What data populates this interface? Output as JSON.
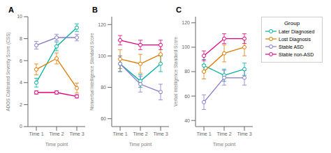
{
  "chart_data": [
    {
      "type": "line",
      "title": "A",
      "x_label": "Time point",
      "y_label": "ADOS Calibrated Severity Score (CSS)",
      "categories": [
        "Time 1",
        "Time 2",
        "Time 3"
      ],
      "ylim": [
        0,
        10
      ],
      "yticks": [
        0,
        2,
        4,
        6,
        8,
        10
      ],
      "grid": false,
      "series": [
        {
          "name": "Later Diagnosed",
          "color": "#00b0a0",
          "marker": "circle",
          "line_style": "solid",
          "values": [
            4.0,
            7.3,
            9.0
          ],
          "yerr": [
            0.4,
            0.4,
            0.35
          ]
        },
        {
          "name": "Lost Diagnosis",
          "color": "#e07b00",
          "marker": "circle",
          "line_style": "solid",
          "values": [
            5.2,
            6.2,
            3.5
          ],
          "yerr": [
            0.5,
            0.5,
            0.45
          ]
        },
        {
          "name": "Stable ASD",
          "color": "#8878cc",
          "marker": "circle",
          "line_style": "solid",
          "values": [
            7.4,
            8.1,
            8.1
          ],
          "yerr": [
            0.35,
            0.3,
            0.3
          ]
        },
        {
          "name": "Stable non-ASD",
          "color": "#e0007f",
          "marker": "circle",
          "line_style": "solid",
          "values": [
            3.1,
            3.1,
            2.75
          ],
          "yerr": [
            0.15,
            0.15,
            0.15
          ]
        }
      ]
    },
    {
      "type": "line",
      "title": "B",
      "x_label": "Time point",
      "y_label": "Nonverbal Intelligence Standard Score",
      "categories": [
        "Time 1",
        "Time 2",
        "Time 3"
      ],
      "ylim": [
        55,
        125
      ],
      "yticks": [
        60,
        80,
        100,
        120
      ],
      "grid": false,
      "series": [
        {
          "name": "Later Diagnosed",
          "color": "#00b0a0",
          "marker": "circle",
          "line_style": "solid",
          "values": [
            95,
            84,
            95
          ],
          "yerr": [
            5,
            4,
            5
          ]
        },
        {
          "name": "Lost Diagnosis",
          "color": "#e07b00",
          "marker": "circle",
          "line_style": "solid",
          "values": [
            98,
            95,
            101
          ],
          "yerr": [
            6,
            6,
            6
          ]
        },
        {
          "name": "Stable ASD",
          "color": "#8878cc",
          "marker": "circle",
          "line_style": "solid",
          "values": [
            95,
            82,
            77
          ],
          "yerr": [
            5,
            5,
            5
          ]
        },
        {
          "name": "Stable non-ASD",
          "color": "#e0007f",
          "marker": "circle",
          "line_style": "solid",
          "values": [
            110,
            107,
            107
          ],
          "yerr": [
            3,
            3,
            3
          ]
        }
      ]
    },
    {
      "type": "line",
      "title": "C",
      "x_label": "Time point",
      "y_label": "Verbal Intelligence Standard Score",
      "categories": [
        "Time 1",
        "Time 2",
        "Time 3"
      ],
      "ylim": [
        35,
        125
      ],
      "yticks": [
        40,
        60,
        80,
        100,
        120
      ],
      "grid": false,
      "legend": "right",
      "legend_title": "Group",
      "series": [
        {
          "name": "Later Diagnosed",
          "color": "#00b0a0",
          "marker": "circle",
          "line_style": "solid",
          "values": [
            85,
            77,
            82
          ],
          "yerr": [
            5,
            5,
            5
          ]
        },
        {
          "name": "Lost Diagnosis",
          "color": "#e07b00",
          "marker": "circle",
          "line_style": "solid",
          "values": [
            80,
            95,
            100
          ],
          "yerr": [
            6,
            7,
            7
          ]
        },
        {
          "name": "Stable ASD",
          "color": "#8878cc",
          "marker": "circle",
          "line_style": "solid",
          "values": [
            55,
            75,
            75
          ],
          "yerr": [
            6,
            6,
            6
          ]
        },
        {
          "name": "Stable non-ASD",
          "color": "#e0007f",
          "marker": "circle",
          "line_style": "solid",
          "values": [
            93,
            107,
            107
          ],
          "yerr": [
            4,
            4,
            4
          ]
        }
      ]
    }
  ]
}
